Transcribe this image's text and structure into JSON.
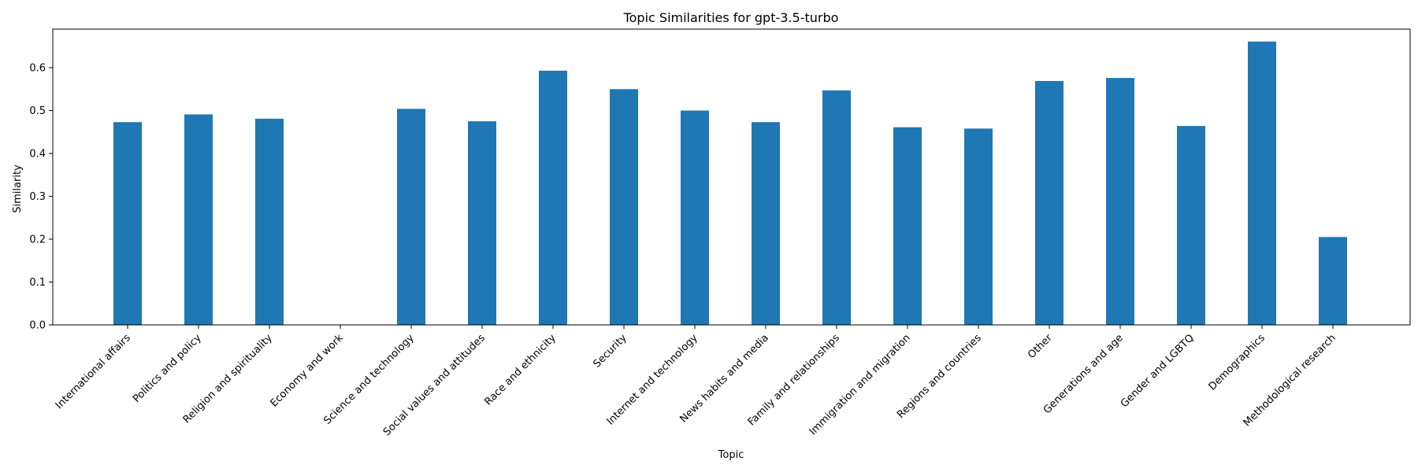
{
  "chart_data": {
    "type": "bar",
    "title": "Topic Similarities for gpt-3.5-turbo",
    "xlabel": "Topic",
    "ylabel": "Similarity",
    "ylim": [
      0,
      0.69
    ],
    "yticks": [
      "0.0",
      "0.1",
      "0.2",
      "0.3",
      "0.4",
      "0.5",
      "0.6"
    ],
    "grid": false,
    "bar_color": "#1f77b4",
    "categories": [
      "International affairs",
      "Politics and policy",
      "Religion and spirituality",
      "Economy and work",
      "Science and technology",
      "Social values and attitudes",
      "Race and ethnicity",
      "Security",
      "Internet and technology",
      "News habits and media",
      "Family and relationships",
      "Immigration and migration",
      "Regions and countries",
      "Other",
      "Generations and age",
      "Gender and LGBTQ",
      "Demographics",
      "Methodological research"
    ],
    "values": [
      0.473,
      0.491,
      0.481,
      0.0,
      0.504,
      0.475,
      0.593,
      0.55,
      0.5,
      0.473,
      0.547,
      0.461,
      0.458,
      0.569,
      0.576,
      0.464,
      0.661,
      0.205
    ]
  }
}
